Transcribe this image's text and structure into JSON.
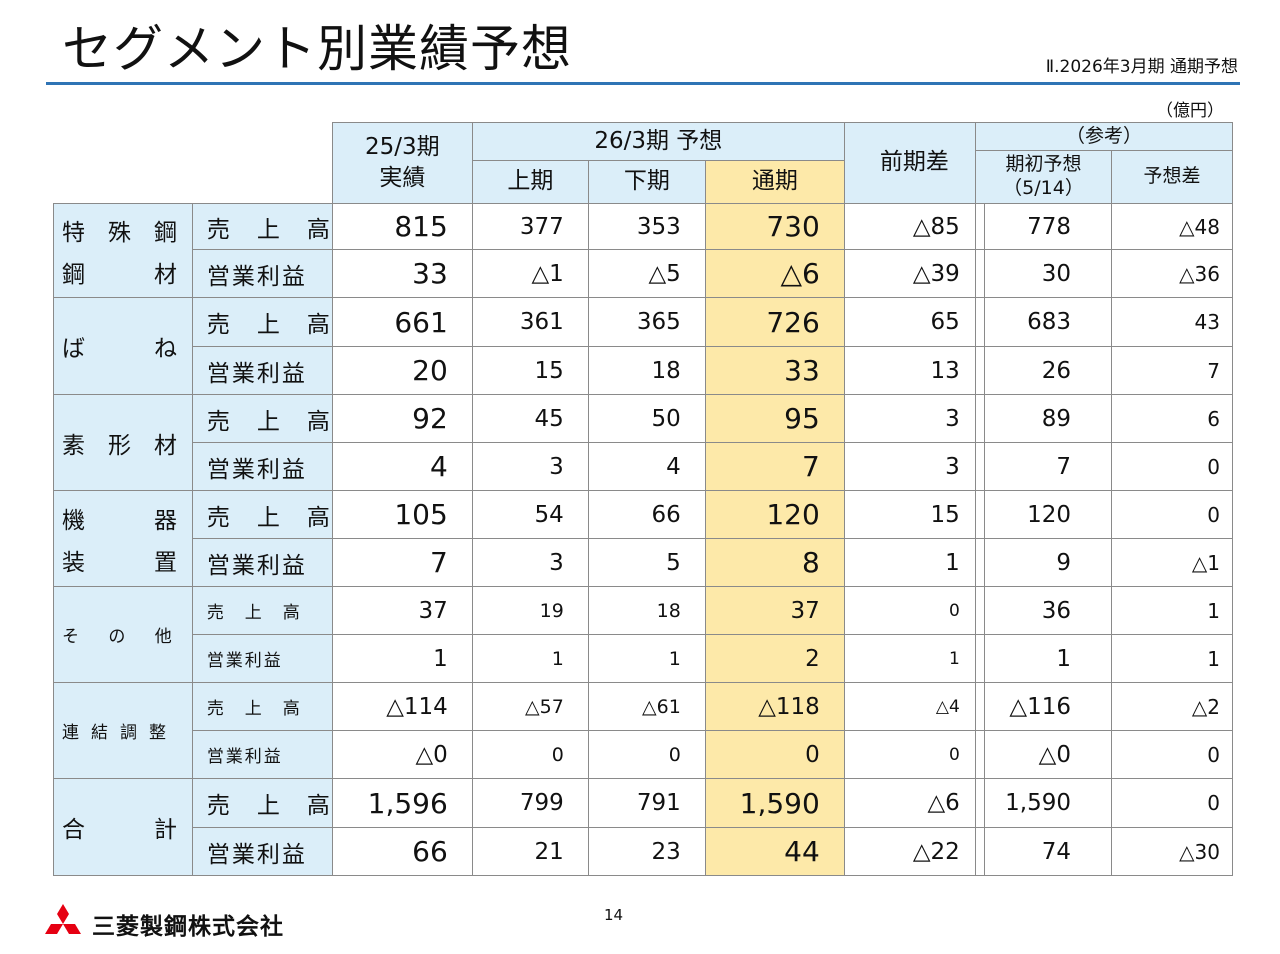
{
  "header": {
    "title": "セグメント別業績予想",
    "section": "Ⅱ.2026年3月期 通期予想",
    "unit": "（億円）"
  },
  "columns": {
    "actual_line1": "25/3期",
    "actual_line2": "実績",
    "forecast": "26/3期 予想",
    "h1": "上期",
    "h2": "下期",
    "full": "通期",
    "diff": "前期差"
  },
  "reference": {
    "title": "（参考）",
    "initial_line1": "期初予想",
    "initial_line2": "（5/14）",
    "diff": "予想差"
  },
  "segments": [
    {
      "name_top": "特　殊　鋼",
      "name_bottom": "鋼　　　材",
      "rows": [
        {
          "item": "売　上　高",
          "actual": "815",
          "h1": "377",
          "h2": "353",
          "full": "730",
          "diff": "△85",
          "initial": "778",
          "fdiff": "△48"
        },
        {
          "item": "営業利益",
          "actual": "33",
          "h1": "△1",
          "h2": "△5",
          "full": "△6",
          "diff": "△39",
          "initial": "30",
          "fdiff": "△36"
        }
      ]
    },
    {
      "name_top": "ば　　　ね",
      "name_bottom": "",
      "rows": [
        {
          "item": "売　上　高",
          "actual": "661",
          "h1": "361",
          "h2": "365",
          "full": "726",
          "diff": "65",
          "initial": "683",
          "fdiff": "43"
        },
        {
          "item": "営業利益",
          "actual": "20",
          "h1": "15",
          "h2": "18",
          "full": "33",
          "diff": "13",
          "initial": "26",
          "fdiff": "7"
        }
      ]
    },
    {
      "name_top": "素　形　材",
      "name_bottom": "",
      "rows": [
        {
          "item": "売　上　高",
          "actual": "92",
          "h1": "45",
          "h2": "50",
          "full": "95",
          "diff": "3",
          "initial": "89",
          "fdiff": "6"
        },
        {
          "item": "営業利益",
          "actual": "4",
          "h1": "3",
          "h2": "4",
          "full": "7",
          "diff": "3",
          "initial": "7",
          "fdiff": "0"
        }
      ]
    },
    {
      "name_top": "機　　　器",
      "name_bottom": "装　　　置",
      "rows": [
        {
          "item": "売　上　高",
          "actual": "105",
          "h1": "54",
          "h2": "66",
          "full": "120",
          "diff": "15",
          "initial": "120",
          "fdiff": "0"
        },
        {
          "item": "営業利益",
          "actual": "7",
          "h1": "3",
          "h2": "5",
          "full": "8",
          "diff": "1",
          "initial": "9",
          "fdiff": "△1"
        }
      ]
    },
    {
      "name_top": "そ の 他",
      "name_bottom": "",
      "rows": [
        {
          "item": "売　上　高",
          "actual": "37",
          "h1": "19",
          "h2": "18",
          "full": "37",
          "diff": "0",
          "initial": "36",
          "fdiff": "1"
        },
        {
          "item": "営業利益",
          "actual": "1",
          "h1": "1",
          "h2": "1",
          "full": "2",
          "diff": "1",
          "initial": "1",
          "fdiff": "1"
        }
      ]
    },
    {
      "name_top": "連結調整",
      "name_bottom": "",
      "rows": [
        {
          "item": "売　上　高",
          "actual": "△114",
          "h1": "△57",
          "h2": "△61",
          "full": "△118",
          "diff": "△4",
          "initial": "△116",
          "fdiff": "△2"
        },
        {
          "item": "営業利益",
          "actual": "△0",
          "h1": "0",
          "h2": "0",
          "full": "0",
          "diff": "0",
          "initial": "△0",
          "fdiff": "0"
        }
      ]
    },
    {
      "name_top": "合　　　計",
      "name_bottom": "",
      "rows": [
        {
          "item": "売　上　高",
          "actual": "1,596",
          "h1": "799",
          "h2": "791",
          "full": "1,590",
          "diff": "△6",
          "initial": "1,590",
          "fdiff": "0"
        },
        {
          "item": "営業利益",
          "actual": "66",
          "h1": "21",
          "h2": "23",
          "full": "44",
          "diff": "△22",
          "initial": "74",
          "fdiff": "△30"
        }
      ]
    }
  ],
  "footer": {
    "page": "14",
    "company": "三菱製鋼株式会社",
    "logo_icon": "three-diamonds-icon",
    "logo_color": "#e60012"
  }
}
